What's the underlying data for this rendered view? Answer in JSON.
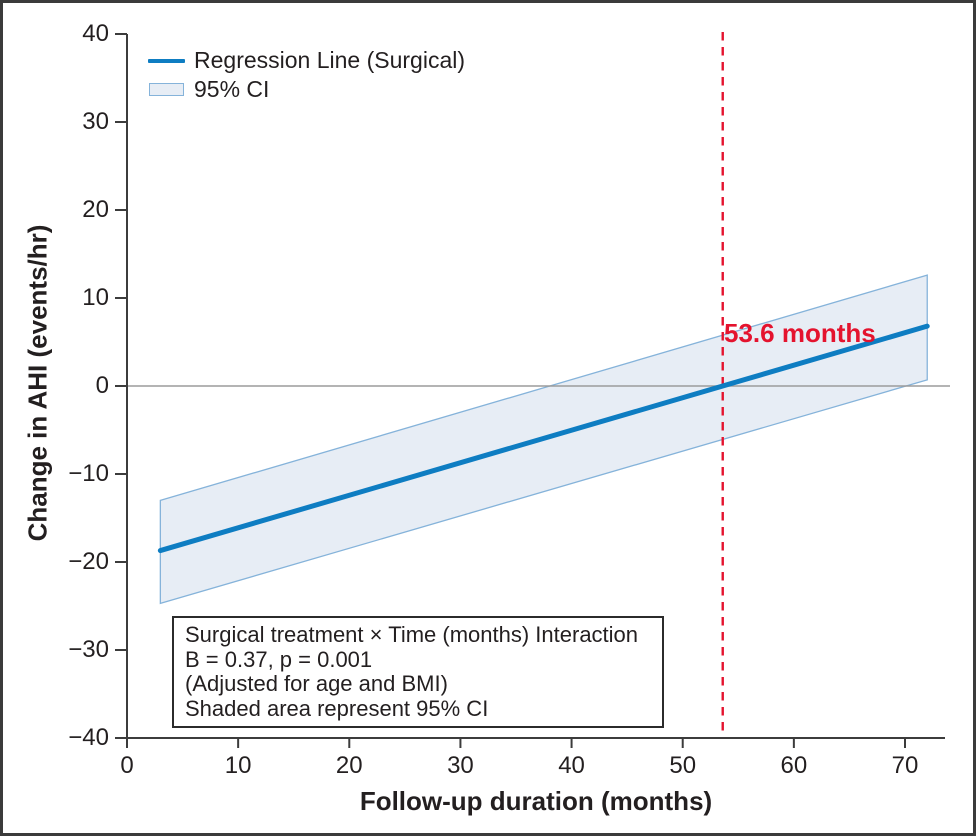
{
  "page": {
    "background": "#ffffff",
    "frame_color": "#3b3b3b"
  },
  "chart_data": {
    "type": "line",
    "title": "",
    "xlabel": "Follow-up duration (months)",
    "ylabel": "Change in AHI (events/hr)",
    "xlim": [
      0,
      73.6
    ],
    "ylim": [
      -40,
      40
    ],
    "grid": false,
    "axis_color": "#3c3c3c",
    "text_color": "#231f20",
    "x_ticks": [
      {
        "value": 0,
        "label": "0"
      },
      {
        "value": 10,
        "label": "10"
      },
      {
        "value": 20,
        "label": "20"
      },
      {
        "value": 30,
        "label": "30"
      },
      {
        "value": 40,
        "label": "40"
      },
      {
        "value": 50,
        "label": "50"
      },
      {
        "value": 60,
        "label": "60"
      },
      {
        "value": 70,
        "label": "70"
      }
    ],
    "y_ticks": [
      {
        "value": 40,
        "label": "40"
      },
      {
        "value": 30,
        "label": "30"
      },
      {
        "value": 20,
        "label": "20"
      },
      {
        "value": 10,
        "label": "10"
      },
      {
        "value": 0,
        "label": "0"
      },
      {
        "value": -10,
        "label": "−10"
      },
      {
        "value": -20,
        "label": "−20"
      },
      {
        "value": -30,
        "label": "−30"
      },
      {
        "value": -40,
        "label": "−40"
      }
    ],
    "zero_line": {
      "y": 0,
      "color": "#9b9b9b"
    },
    "series": [
      {
        "name": "Regression Line (Surgical)",
        "type": "line",
        "color": "#0e7dc2",
        "stroke_width": 5,
        "x": [
          3,
          72
        ],
        "y": [
          -18.7,
          6.8
        ]
      },
      {
        "name": "95% CI",
        "type": "band",
        "fill": "#e7edf5",
        "edge": "#85b3da",
        "x": [
          3,
          72
        ],
        "upper": [
          -13.0,
          12.6
        ],
        "lower": [
          -24.7,
          0.7
        ]
      }
    ],
    "reference_line": {
      "x": 53.6,
      "style": "dashed",
      "color": "#e4132e",
      "label": "53.6 months"
    },
    "legend": {
      "position": "top-left",
      "entries": [
        {
          "label": "Regression Line (Surgical)",
          "swatch": "line"
        },
        {
          "label": "95% CI",
          "swatch": "box"
        }
      ]
    },
    "stats_box": {
      "lines": [
        "Surgical treatment × Time (months) Interaction",
        "B = 0.37, p = 0.001",
        "(Adjusted for age and BMI)",
        "Shaded area represent 95% CI"
      ]
    }
  }
}
